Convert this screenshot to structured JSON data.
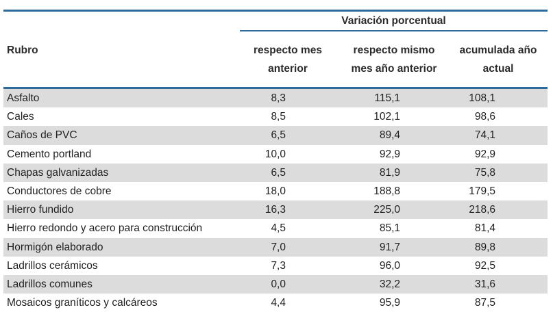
{
  "table": {
    "group_title": "Variación porcentual",
    "headers": {
      "rubro": "Rubro",
      "col1_line1": "respecto mes",
      "col1_line2": "anterior",
      "col2_line1": "respecto mismo",
      "col2_line2": "mes año anterior",
      "col3_line1": "acumulada año",
      "col3_line2": "actual"
    },
    "rows": [
      {
        "name": "Asfalto",
        "v1": "8,3",
        "v2": "115,1",
        "v3": "108,1"
      },
      {
        "name": "Cales",
        "v1": "8,5",
        "v2": "102,1",
        "v3": "98,6"
      },
      {
        "name": "Caños de PVC",
        "v1": "6,5",
        "v2": "89,4",
        "v3": "74,1"
      },
      {
        "name": "Cemento portland",
        "v1": "10,0",
        "v2": "92,9",
        "v3": "92,9"
      },
      {
        "name": "Chapas galvanizadas",
        "v1": "6,5",
        "v2": "81,9",
        "v3": "75,8"
      },
      {
        "name": "Conductores de cobre",
        "v1": "18,0",
        "v2": "188,8",
        "v3": "179,5"
      },
      {
        "name": "Hierro fundido",
        "v1": "16,3",
        "v2": "225,0",
        "v3": "218,6"
      },
      {
        "name": "Hierro redondo y acero para construcción",
        "v1": "4,5",
        "v2": "85,1",
        "v3": "81,4"
      },
      {
        "name": "Hormigón elaborado",
        "v1": "7,0",
        "v2": "91,7",
        "v3": "89,8"
      },
      {
        "name": "Ladrillos cerámicos",
        "v1": "7,3",
        "v2": "96,0",
        "v3": "92,5"
      },
      {
        "name": "Ladrillos comunes",
        "v1": "0,0",
        "v2": "32,2",
        "v3": "31,6"
      },
      {
        "name": "Mosaicos graníticos y calcáreos",
        "v1": "4,4",
        "v2": "95,9",
        "v3": "87,5"
      }
    ]
  },
  "colors": {
    "rule": "#2b6a9a",
    "shaded_row": "#dcdcdc"
  }
}
